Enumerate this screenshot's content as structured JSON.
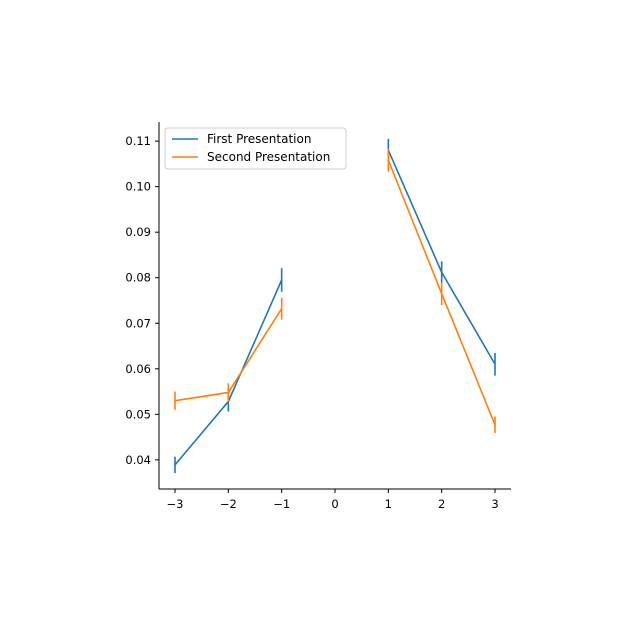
{
  "chart_data": {
    "type": "line",
    "title": "",
    "xlabel": "",
    "ylabel": "",
    "xlim": [
      -3.3,
      3.3
    ],
    "ylim": [
      0.0336,
      0.1142
    ],
    "x_ticks": [
      -3,
      -2,
      -1,
      0,
      1,
      2,
      3
    ],
    "x_tick_labels": [
      "−3",
      "−2",
      "−1",
      "0",
      "1",
      "2",
      "3"
    ],
    "y_ticks": [
      0.04,
      0.05,
      0.06,
      0.07,
      0.08,
      0.09,
      0.1,
      0.11
    ],
    "y_tick_labels": [
      "0.04",
      "0.05",
      "0.06",
      "0.07",
      "0.08",
      "0.09",
      "0.10",
      "0.11"
    ],
    "legend_position": "top-left",
    "grid": false,
    "series": [
      {
        "name": "First Presentation",
        "color": "#1f77b4",
        "segments": [
          {
            "x": [
              -3,
              -2,
              -1
            ],
            "y": [
              0.0389,
              0.0528,
              0.0795
            ],
            "err": [
              0.0018,
              0.0022,
              0.0026
            ]
          },
          {
            "x": [
              1,
              2,
              3
            ],
            "y": [
              0.108,
              0.0812,
              0.061
            ],
            "err": [
              0.0025,
              0.0024,
              0.0025
            ]
          }
        ]
      },
      {
        "name": "Second Presentation",
        "color": "#ff7f0e",
        "segments": [
          {
            "x": [
              -3,
              -2,
              -1
            ],
            "y": [
              0.053,
              0.0548,
              0.0732
            ],
            "err": [
              0.002,
              0.002,
              0.0024
            ]
          },
          {
            "x": [
              1,
              2,
              3
            ],
            "y": [
              0.1058,
              0.0765,
              0.0477
            ],
            "err": [
              0.0025,
              0.0025,
              0.0018
            ]
          }
        ]
      }
    ]
  }
}
